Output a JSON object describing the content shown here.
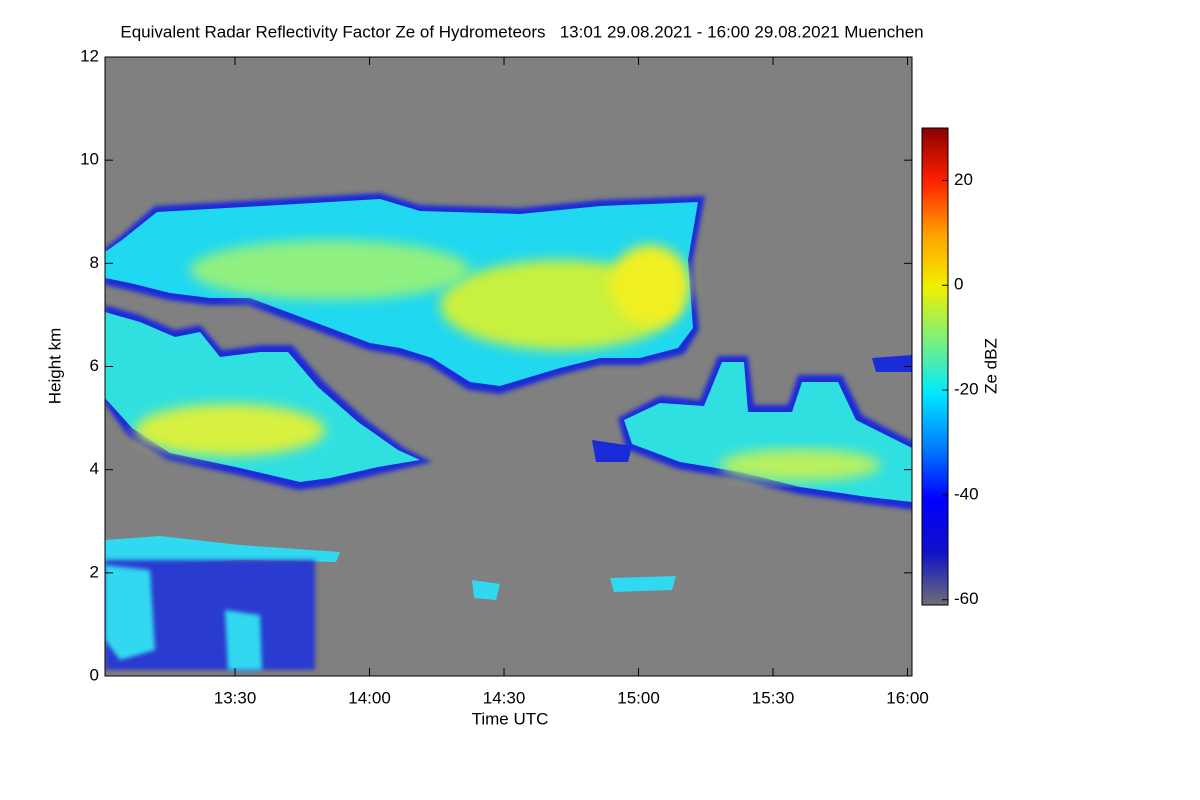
{
  "chart_data": {
    "type": "radar-time-height",
    "title": "Equivalent Radar Reflectivity Factor Ze of Hydrometeors   13:01 29.08.2021 - 16:00 29.08.2021 Muenchen",
    "x_label": "Time UTC",
    "y_label": "Height km",
    "xlim": [
      781,
      961
    ],
    "xticks": [
      {
        "value": 810,
        "label": "13:30"
      },
      {
        "value": 840,
        "label": "14:00"
      },
      {
        "value": 870,
        "label": "14:30"
      },
      {
        "value": 900,
        "label": "15:00"
      },
      {
        "value": 930,
        "label": "15:30"
      },
      {
        "value": 960,
        "label": "16:00"
      }
    ],
    "ylim": [
      0,
      12
    ],
    "yticks": [
      0,
      2,
      4,
      6,
      8,
      10,
      12
    ],
    "colorbar": {
      "label": "Ze dBZ",
      "clim": [
        -61,
        30
      ],
      "ticks": [
        -60,
        -40,
        -20,
        0,
        20
      ],
      "colormap": [
        "#6e6e78",
        "#1010c8",
        "#0000ff",
        "#0080ff",
        "#00e8ff",
        "#7cf07c",
        "#f0f000",
        "#ffa000",
        "#ff2000",
        "#8b0000"
      ]
    }
  }
}
